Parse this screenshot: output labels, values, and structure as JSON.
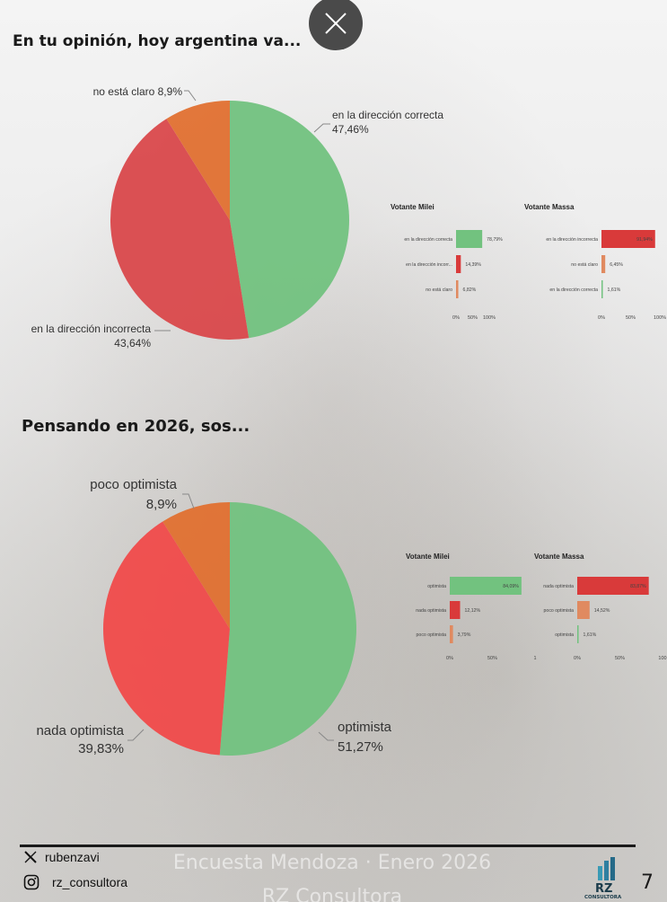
{
  "close_icon": "close-icon",
  "colors": {
    "green": "#72c27f",
    "red": "#d9484b",
    "orange": "#e07030",
    "red_bright": "#f04a4a",
    "bar_green": "#72c27f",
    "bar_red": "#d93a3a",
    "bar_orange": "#e08a60"
  },
  "footer": {
    "x_handle": "rubenzavi",
    "ig_handle": "rz_consultora",
    "line1": "Encuesta Mendoza · Enero 2026",
    "line2": "RZ Consultora",
    "logo_text": "RZ",
    "logo_sub": "CONSULTORA",
    "page_number": "7"
  },
  "chart_data": [
    {
      "type": "pie",
      "title": "En tu opinión, hoy argentina va...",
      "slices": [
        {
          "name": "en la dirección correcta",
          "value": 47.46,
          "label": "47,46%",
          "color": "#72c27f"
        },
        {
          "name": "en la dirección incorrecta",
          "value": 43.64,
          "label": "43,64%",
          "color": "#d9484b"
        },
        {
          "name": "no está claro",
          "value": 8.9,
          "label": "8,9%",
          "color": "#e07030"
        }
      ]
    },
    {
      "type": "bar",
      "orientation": "horizontal",
      "title": "Votante Milei",
      "categories": [
        "en la dirección correcta",
        "en la dirección incorr...",
        "no está claro"
      ],
      "values": [
        78.79,
        14.39,
        6.82
      ],
      "labels": [
        "78,79%",
        "14,39%",
        "6,82%"
      ],
      "colors": [
        "#72c27f",
        "#d93a3a",
        "#e08a60"
      ],
      "xticks": [
        "0%",
        "50%",
        "100%"
      ],
      "xlim": [
        0,
        100
      ]
    },
    {
      "type": "bar",
      "orientation": "horizontal",
      "title": "Votante Massa",
      "categories": [
        "en la dirección incorrecta",
        "no está claro",
        "en la dirección correcta"
      ],
      "values": [
        91.94,
        6.45,
        1.61
      ],
      "labels": [
        "91,94%",
        "6,45%",
        "1,61%"
      ],
      "colors": [
        "#d93a3a",
        "#e08a60",
        "#72c27f"
      ],
      "xticks": [
        "0%",
        "50%",
        "100%"
      ],
      "xlim": [
        0,
        100
      ]
    },
    {
      "type": "pie",
      "title": "Pensando en 2026, sos...",
      "slices": [
        {
          "name": "optimista",
          "value": 51.27,
          "label": "51,27%",
          "color": "#72c27f"
        },
        {
          "name": "nada optimista",
          "value": 39.83,
          "label": "39,83%",
          "color": "#f04a4a"
        },
        {
          "name": "poco optimista",
          "value": 8.9,
          "label": "8,9%",
          "color": "#e07030"
        }
      ]
    },
    {
      "type": "bar",
      "orientation": "horizontal",
      "title": "Votante Milei",
      "categories": [
        "optimista",
        "nada optimista",
        "poco optimista"
      ],
      "values": [
        84.09,
        12.12,
        3.79
      ],
      "labels": [
        "84,09%",
        "12,12%",
        "3,79%"
      ],
      "colors": [
        "#72c27f",
        "#d93a3a",
        "#e08a60"
      ],
      "xticks": [
        "0%",
        "50%",
        "1"
      ],
      "xlim": [
        0,
        100
      ]
    },
    {
      "type": "bar",
      "orientation": "horizontal",
      "title": "Votante Massa",
      "categories": [
        "nada optimista",
        "poco optimista",
        "optimista"
      ],
      "values": [
        83.87,
        14.52,
        1.61
      ],
      "labels": [
        "83,87%",
        "14,52%",
        "1,61%"
      ],
      "colors": [
        "#d93a3a",
        "#e08a60",
        "#72c27f"
      ],
      "xticks": [
        "0%",
        "50%",
        "100"
      ],
      "xlim": [
        0,
        100
      ]
    }
  ]
}
